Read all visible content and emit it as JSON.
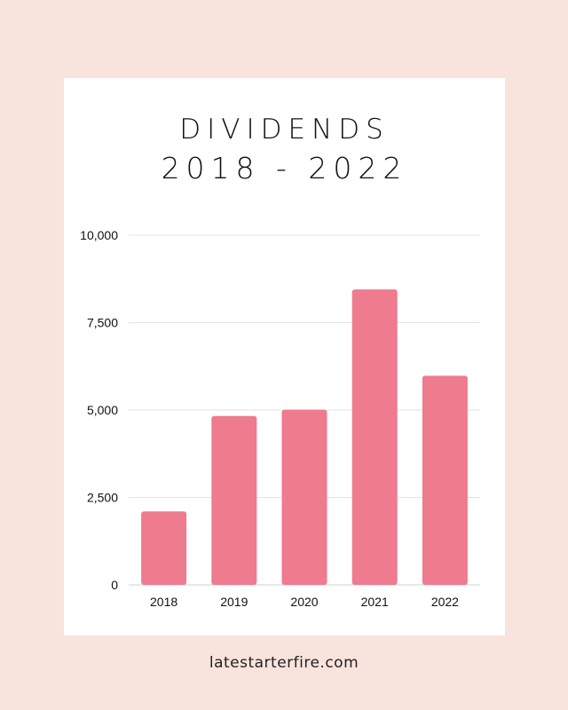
{
  "colors": {
    "background": "#f9e4dd",
    "card": "#ffffff",
    "bar": "#ee7b8e",
    "grid": "#e3e3e3",
    "text": "#111111"
  },
  "header": {
    "title_line1": "DIVIDENDS",
    "title_line2": "2018 - 2022"
  },
  "footer": {
    "site": "latestarterfire.com"
  },
  "chart_data": {
    "type": "bar",
    "title": "DIVIDENDS 2018 - 2022",
    "categories": [
      "2018",
      "2019",
      "2020",
      "2021",
      "2022"
    ],
    "values": [
      2100,
      4830,
      5010,
      8450,
      5980
    ],
    "ylim": [
      0,
      10000
    ],
    "yticks": [
      0,
      2500,
      5000,
      7500,
      10000
    ],
    "ytick_labels": [
      "0",
      "2,500",
      "5,000",
      "7,500",
      "10,000"
    ],
    "grid": true,
    "legend": "none"
  }
}
